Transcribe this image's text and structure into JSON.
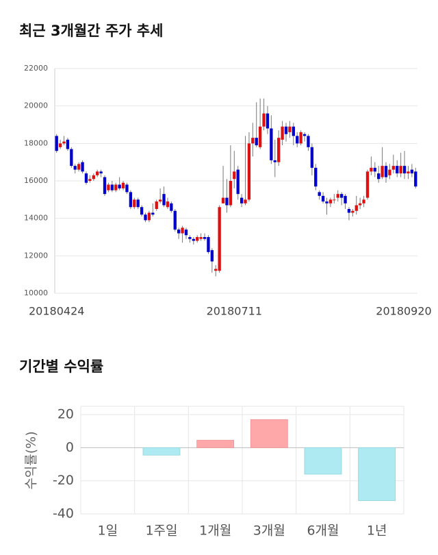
{
  "chart_data": [
    {
      "type": "candlestick",
      "title": "최근 3개월간 주가 추세",
      "categories": [
        "20180424",
        null,
        null,
        null,
        null,
        null,
        null,
        null,
        null,
        null,
        null,
        null,
        null,
        null,
        null,
        null,
        null,
        null,
        null,
        null,
        null,
        null,
        null,
        null,
        null,
        null,
        null,
        null,
        null,
        null,
        null,
        null,
        null,
        null,
        null,
        null,
        null,
        null,
        null,
        null,
        null,
        null,
        null,
        null,
        null,
        null,
        null,
        null,
        "20180711",
        null,
        null,
        null,
        null,
        null,
        null,
        null,
        null,
        null,
        null,
        null,
        null,
        null,
        null,
        null,
        null,
        null,
        null,
        null,
        null,
        null,
        null,
        null,
        null,
        null,
        null,
        null,
        null,
        null,
        null,
        null,
        null,
        null,
        null,
        null,
        null,
        null,
        null,
        null,
        null,
        null,
        null,
        null,
        null,
        null,
        null,
        null,
        null,
        "20180920"
      ],
      "open": [
        18400,
        17800,
        18000,
        18200,
        17700,
        16800,
        16600,
        17000,
        16400,
        16000,
        16100,
        16300,
        16500,
        16200,
        15500,
        15800,
        15500,
        15800,
        15600,
        15800,
        15400,
        14600,
        15000,
        14600,
        14200,
        13900,
        14300,
        14500,
        14900,
        15300,
        14600,
        14800,
        14400,
        13400,
        13200,
        13400,
        13000,
        12900,
        12800,
        12900,
        13000,
        13000,
        12300,
        11200,
        11200,
        14800,
        15100,
        14700,
        16100,
        16600,
        15100,
        14800,
        15000,
        18000,
        18300,
        17800,
        18900,
        19600,
        18800,
        17100,
        17000,
        18200,
        18900,
        18600,
        18900,
        18400,
        18000,
        18500,
        18400,
        17800,
        16700,
        15400,
        15200,
        14900,
        14800,
        15000,
        15100,
        15300,
        15200,
        14500,
        14300,
        14400,
        14700,
        14800,
        15100,
        16500,
        16700,
        16400,
        16200,
        16800,
        16300,
        16600,
        16800,
        16400,
        16800,
        16400,
        16600,
        16500
      ],
      "high": [
        18500,
        18200,
        18400,
        18300,
        17800,
        16900,
        17000,
        17100,
        16500,
        16300,
        16400,
        16600,
        16600,
        16300,
        15900,
        16000,
        15900,
        16200,
        16000,
        15900,
        15500,
        15100,
        15100,
        14700,
        14300,
        14400,
        14800,
        15000,
        15600,
        15700,
        15100,
        14900,
        14500,
        13500,
        13600,
        13500,
        13100,
        13000,
        13100,
        13200,
        13200,
        13100,
        12400,
        11500,
        14700,
        16800,
        16100,
        17900,
        17600,
        16800,
        15300,
        18400,
        18600,
        19100,
        20200,
        20400,
        20400,
        20000,
        19500,
        18200,
        18700,
        19200,
        19100,
        19200,
        19100,
        18600,
        18700,
        18600,
        18500,
        18000,
        16900,
        15500,
        15400,
        15100,
        15100,
        15300,
        15500,
        15400,
        15300,
        14600,
        14500,
        15200,
        15100,
        15200,
        16600,
        17300,
        17000,
        16800,
        17800,
        17000,
        16900,
        17400,
        17100,
        17500,
        17600,
        16800,
        16900,
        16700
      ],
      "low": [
        17500,
        17700,
        17900,
        17600,
        16700,
        16400,
        16500,
        16400,
        15800,
        15900,
        16000,
        16200,
        16200,
        15200,
        15400,
        15400,
        15400,
        15500,
        15500,
        15300,
        14500,
        14500,
        14500,
        14100,
        13800,
        13800,
        14100,
        14400,
        14800,
        14600,
        14500,
        14300,
        13300,
        12900,
        12700,
        12900,
        12700,
        12600,
        12700,
        12800,
        12800,
        12100,
        11100,
        10900,
        11100,
        14800,
        14300,
        14600,
        15600,
        15000,
        14600,
        14700,
        14900,
        17300,
        17800,
        17700,
        18700,
        18500,
        16900,
        16200,
        16800,
        17900,
        18100,
        18300,
        17900,
        17800,
        17900,
        18100,
        17600,
        16300,
        15500,
        15000,
        14800,
        14200,
        14600,
        14800,
        14900,
        14700,
        14500,
        13900,
        14100,
        14200,
        14500,
        14600,
        15000,
        16300,
        16200,
        15900,
        16100,
        15900,
        16100,
        16400,
        16200,
        16200,
        16100,
        16100,
        16200,
        15600
      ],
      "close": [
        17600,
        18000,
        18100,
        17700,
        16800,
        16600,
        16900,
        16500,
        15900,
        16100,
        16300,
        16500,
        16400,
        15300,
        15800,
        15500,
        15800,
        15600,
        15900,
        15400,
        14600,
        15000,
        14600,
        14200,
        13900,
        14300,
        14200,
        14900,
        15000,
        14700,
        14900,
        14400,
        13400,
        13200,
        13500,
        13100,
        12900,
        12800,
        13000,
        13000,
        12900,
        12200,
        11700,
        11300,
        14600,
        15100,
        14700,
        16000,
        16500,
        15300,
        14800,
        15000,
        18000,
        18300,
        17900,
        18900,
        19600,
        18800,
        17100,
        17000,
        18300,
        18900,
        18500,
        18900,
        18400,
        18000,
        18600,
        18400,
        17800,
        16700,
        15700,
        15200,
        14900,
        14800,
        15000,
        15000,
        15300,
        15100,
        14800,
        14300,
        14400,
        14700,
        14800,
        15000,
        16500,
        16700,
        16500,
        16100,
        16800,
        16200,
        16600,
        16800,
        16400,
        16800,
        16400,
        16500,
        16400,
        15700
      ],
      "up_color": "#dd1111",
      "down_color": "#0000cc",
      "ylim": [
        10000,
        22000
      ],
      "yticks": [
        10000,
        12000,
        14000,
        16000,
        18000,
        20000,
        22000
      ],
      "grid": true
    },
    {
      "type": "bar",
      "title": "기간별 수익률",
      "ylabel": "수익률(%)",
      "categories": [
        "1일",
        "1주일",
        "1개월",
        "3개월",
        "6개월",
        "1년"
      ],
      "values": [
        0,
        -4.5,
        4.5,
        17,
        -16,
        -32
      ],
      "positive_color": "#ffa8aa",
      "negative_color": "#aeeaf2",
      "ylim": [
        -40,
        25
      ],
      "yticks": [
        20,
        0,
        -20,
        -40
      ],
      "grid": true
    }
  ]
}
